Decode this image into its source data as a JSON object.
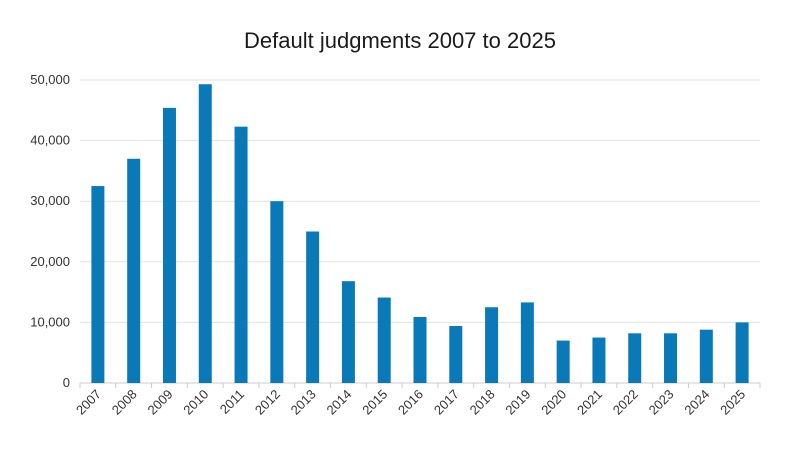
{
  "chart_data": {
    "type": "bar",
    "title": "Default judgments 2007 to 2025",
    "xlabel": "",
    "ylabel": "",
    "categories": [
      "2007",
      "2008",
      "2009",
      "2010",
      "2011",
      "2012",
      "2013",
      "2014",
      "2015",
      "2016",
      "2017",
      "2018",
      "2019",
      "2020",
      "2021",
      "2022",
      "2023",
      "2024",
      "2025"
    ],
    "values": [
      32500,
      37000,
      45400,
      49300,
      42300,
      30000,
      25000,
      16800,
      14100,
      10900,
      9400,
      12500,
      13300,
      7000,
      7500,
      8200,
      8200,
      8800,
      10000
    ],
    "ylim": [
      0,
      50000
    ],
    "yticks": [
      0,
      10000,
      20000,
      30000,
      40000,
      50000
    ],
    "ytick_labels": [
      "0",
      "10,000",
      "20,000",
      "30,000",
      "40,000",
      "50,000"
    ],
    "grid": true,
    "bar_color": "#0a79b8",
    "grid_color": "#e3e3e3"
  }
}
